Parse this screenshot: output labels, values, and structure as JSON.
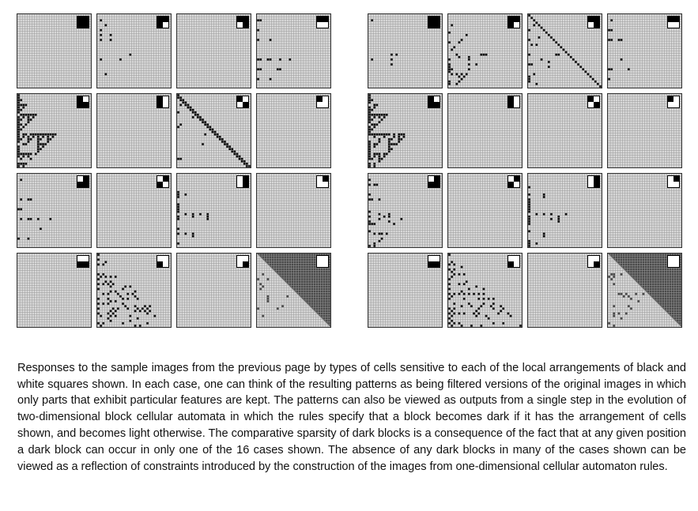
{
  "figure": {
    "panels": [
      {
        "id": "left",
        "tiles": [
          {
            "key": "1111",
            "density": "sparse-gray"
          },
          {
            "key": "1110",
            "density": "dots"
          },
          {
            "key": "1101",
            "density": "sparse-gray"
          },
          {
            "key": "1100",
            "density": "bars"
          },
          {
            "key": "1011",
            "density": "heavy"
          },
          {
            "key": "1010",
            "density": "sparse-gray"
          },
          {
            "key": "1001",
            "density": "diag"
          },
          {
            "key": "1000",
            "density": "sparse-gray"
          },
          {
            "key": "0111",
            "density": "bars"
          },
          {
            "key": "0110",
            "density": "sparse-gray"
          },
          {
            "key": "0101",
            "density": "columns"
          },
          {
            "key": "0100",
            "density": "sparse-gray"
          },
          {
            "key": "0011",
            "density": "sparse-gray"
          },
          {
            "key": "0010",
            "density": "diag-heavy"
          },
          {
            "key": "0001",
            "density": "sparse-gray"
          },
          {
            "key": "0000",
            "density": "dark-fill"
          }
        ]
      },
      {
        "id": "right",
        "tiles": [
          {
            "key": "1111",
            "density": "dots"
          },
          {
            "key": "1110",
            "density": "scatter"
          },
          {
            "key": "1101",
            "density": "diag-dots"
          },
          {
            "key": "1100",
            "density": "bars"
          },
          {
            "key": "1011",
            "density": "heavy"
          },
          {
            "key": "1010",
            "density": "sparse-gray"
          },
          {
            "key": "1001",
            "density": "sparse-gray"
          },
          {
            "key": "1000",
            "density": "sparse-gray"
          },
          {
            "key": "0111",
            "density": "scatter"
          },
          {
            "key": "0110",
            "density": "sparse-gray"
          },
          {
            "key": "0101",
            "density": "columns"
          },
          {
            "key": "0100",
            "density": "sparse-gray"
          },
          {
            "key": "0011",
            "density": "sparse-gray"
          },
          {
            "key": "0010",
            "density": "diag-heavy"
          },
          {
            "key": "0001",
            "density": "sparse-gray"
          },
          {
            "key": "0000",
            "density": "dark-blobs"
          }
        ]
      }
    ],
    "colors": {
      "grid": "#9a9a9a",
      "cell_light": "#d8d8d8",
      "cell_dark": "#111111",
      "fill_dark": "#4a4a4a"
    }
  },
  "caption": {
    "text": "Responses to the sample images from the previous page by types of cells sensitive to each of the local arrangements of black and white squares shown. In each case, one can think of the resulting patterns as being filtered versions of the original images in which only parts that exhibit particular features are kept. The patterns can also be viewed as outputs from a single step in the evolution of two-dimensional block cellular automata in which the rules specify that a block becomes dark if it has the arrangement of cells shown, and becomes light otherwise. The comparative sparsity of dark blocks is a consequence of the fact that at any given position a dark block can occur in only one of the 16 cases shown. The absence of any dark blocks in many of the cases shown can be viewed as a reflection of constraints introduced by the construction of the images from one-dimensional cellular automaton rules."
  }
}
